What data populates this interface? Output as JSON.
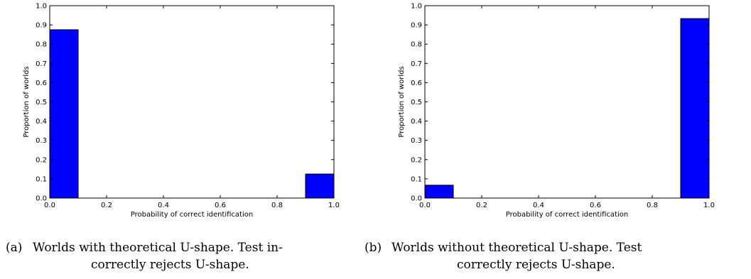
{
  "chart_data": [
    {
      "type": "bar",
      "title": "",
      "xlabel": "Probability of correct identification",
      "ylabel": "Proportion of worlds",
      "xlim": [
        0.0,
        1.0
      ],
      "ylim": [
        0.0,
        1.0
      ],
      "bin_width": 0.1,
      "bars": [
        {
          "x": 0.0,
          "value": 0.875
        },
        {
          "x": 0.9,
          "value": 0.125
        }
      ],
      "xticks": [
        "0.0",
        "0.2",
        "0.4",
        "0.6",
        "0.8",
        "1.0"
      ],
      "yticks": [
        "0.0",
        "0.1",
        "0.2",
        "0.3",
        "0.4",
        "0.5",
        "0.6",
        "0.7",
        "0.8",
        "0.9",
        "1.0"
      ],
      "bar_color": "#0000ff",
      "grid": false
    },
    {
      "type": "bar",
      "title": "",
      "xlabel": "Probability of correct identification",
      "ylabel": "Proportion of worlds",
      "xlim": [
        0.0,
        1.0
      ],
      "ylim": [
        0.0,
        1.0
      ],
      "bin_width": 0.1,
      "bars": [
        {
          "x": 0.0,
          "value": 0.067
        },
        {
          "x": 0.9,
          "value": 0.933
        }
      ],
      "xticks": [
        "0.0",
        "0.2",
        "0.4",
        "0.6",
        "0.8",
        "1.0"
      ],
      "yticks": [
        "0.0",
        "0.1",
        "0.2",
        "0.3",
        "0.4",
        "0.5",
        "0.6",
        "0.7",
        "0.8",
        "0.9",
        "1.0"
      ],
      "bar_color": "#0000ff",
      "grid": false
    }
  ],
  "captions": {
    "a": {
      "marker": "(a)",
      "line1": "Worlds with theoretical U-shape.  Test in-",
      "line2": "correctly rejects U-shape."
    },
    "b": {
      "marker": "(b)",
      "line1": "Worlds without theoretical U-shape.  Test",
      "line2": "correctly rejects U-shape."
    }
  }
}
